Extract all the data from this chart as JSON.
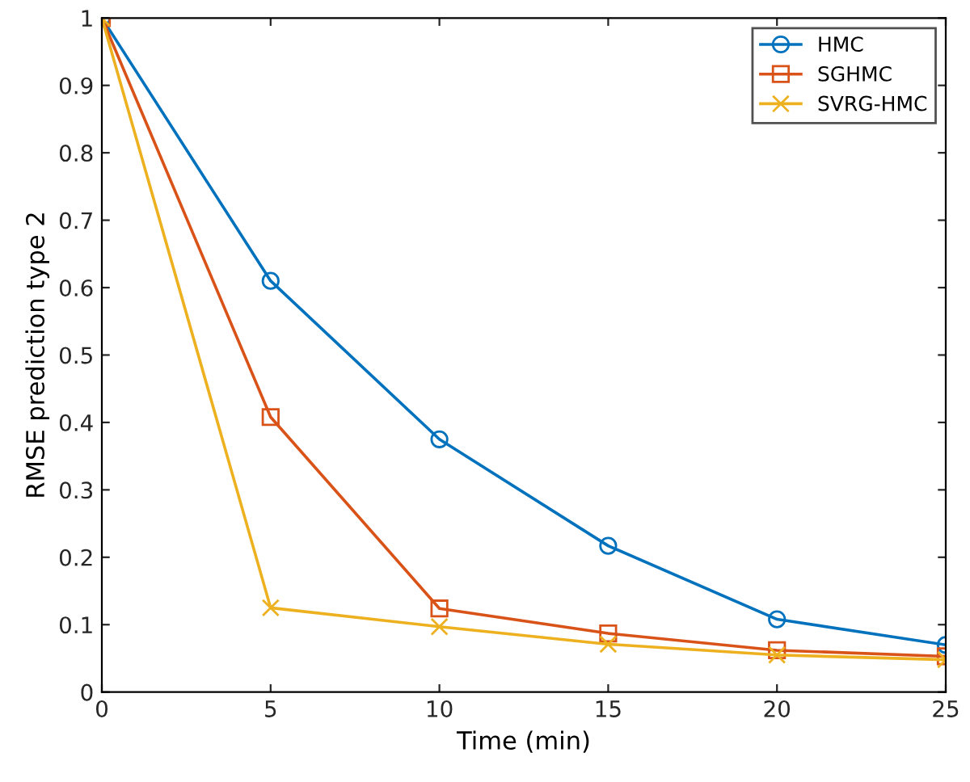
{
  "chart_data": {
    "type": "line",
    "xlabel": "Time (min)",
    "ylabel": "RMSE prediction type 2",
    "x": [
      0,
      5,
      10,
      15,
      20,
      25
    ],
    "series": [
      {
        "name": "HMC",
        "color": "#0072bd",
        "marker": "circle",
        "values": [
          1,
          0.61,
          0.375,
          0.217,
          0.108,
          0.07
        ]
      },
      {
        "name": "SGHMC",
        "color": "#d95319",
        "marker": "square",
        "values": [
          1,
          0.408,
          0.124,
          0.087,
          0.062,
          0.053
        ]
      },
      {
        "name": "SVRG-HMC",
        "color": "#edb120",
        "marker": "cross",
        "values": [
          1,
          0.125,
          0.097,
          0.071,
          0.055,
          0.048
        ]
      }
    ],
    "xlim": [
      0,
      25
    ],
    "xticks": [
      0,
      5,
      10,
      15,
      20,
      25
    ],
    "ylim": [
      0,
      1
    ],
    "yticks": [
      0,
      0.1,
      0.2,
      0.3,
      0.4,
      0.5,
      0.6,
      0.7,
      0.8,
      0.9,
      1
    ],
    "grid": false,
    "legend": "top right",
    "line_style": "solid"
  }
}
